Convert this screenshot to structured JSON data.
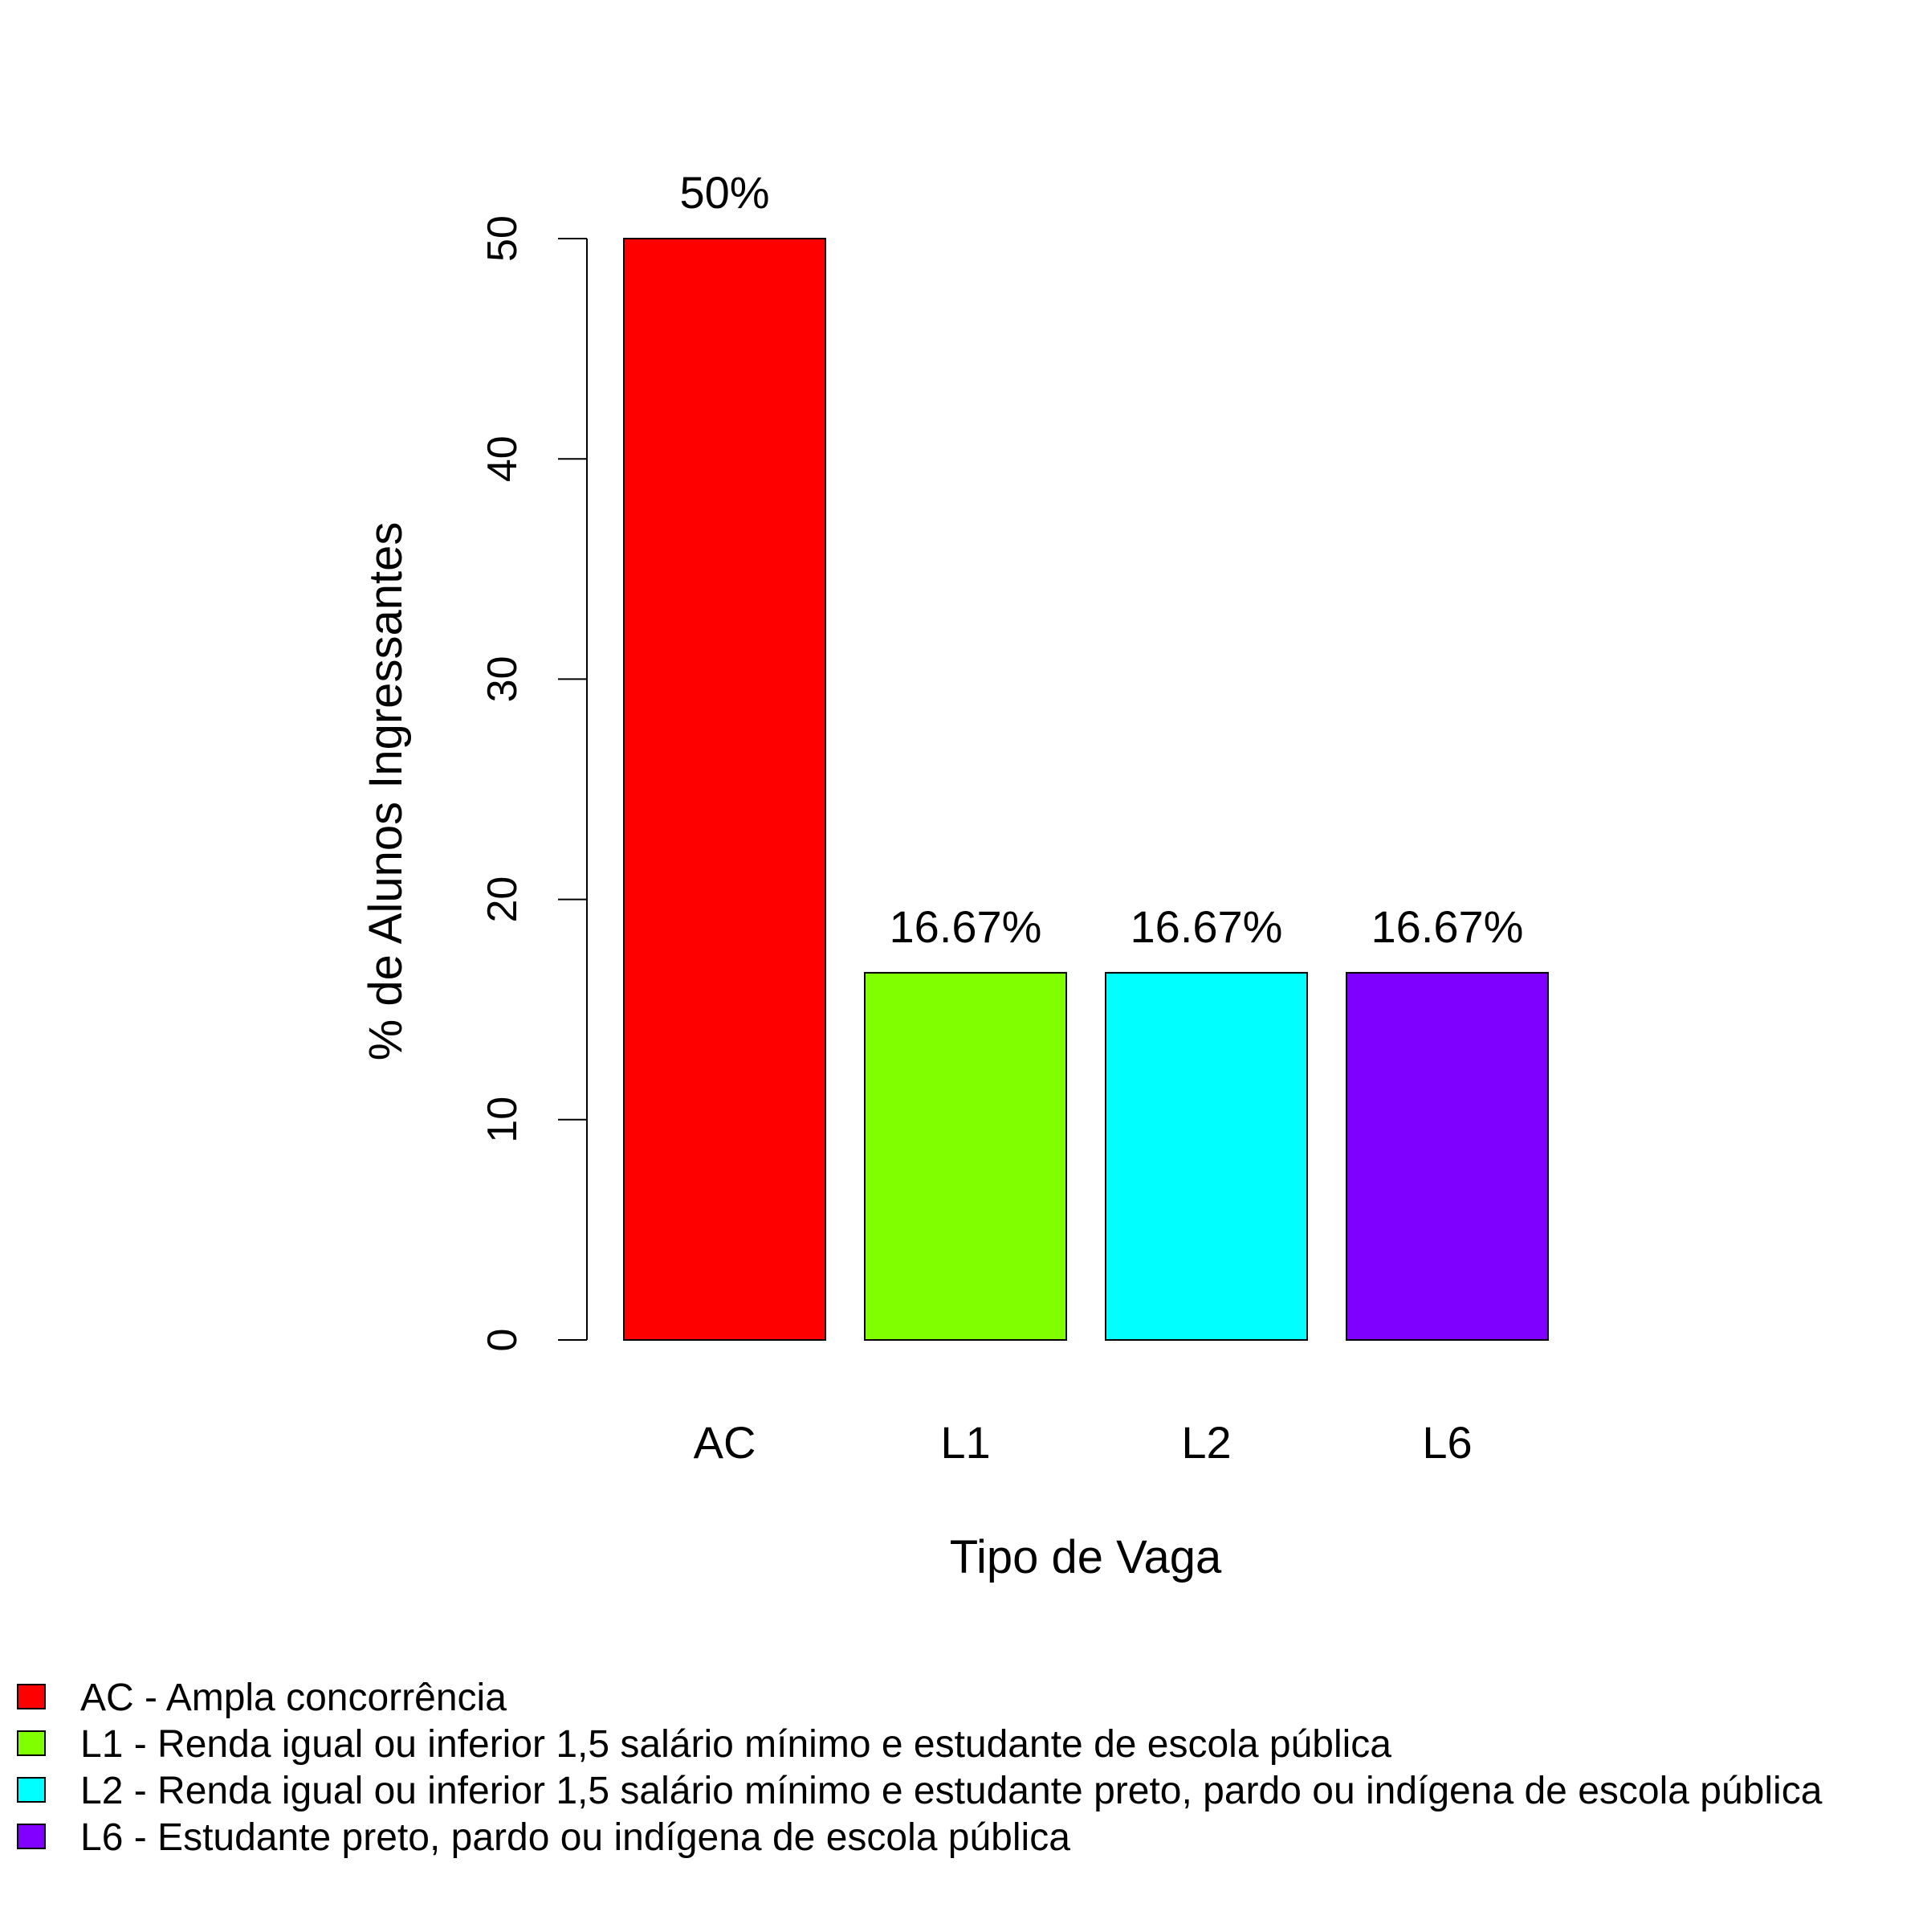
{
  "chart_data": {
    "type": "bar",
    "xlabel": "Tipo de Vaga",
    "ylabel": "% de Alunos Ingressantes",
    "ylim": [
      0,
      50
    ],
    "yticks": [
      0,
      10,
      20,
      30,
      40,
      50
    ],
    "categories": [
      "AC",
      "L1",
      "L2",
      "L6"
    ],
    "values": [
      50,
      16.67,
      16.67,
      16.67
    ],
    "data_labels": [
      "50%",
      "16.67%",
      "16.67%",
      "16.67%"
    ],
    "colors": [
      "#FF0000",
      "#80FF00",
      "#00FFFF",
      "#8000FF"
    ],
    "grid": false,
    "legend": {
      "position": "bottom-left",
      "entries": [
        {
          "label": "AC - Ampla concorrência",
          "color": "#FF0000"
        },
        {
          "label": "L1 - Renda igual ou inferior 1,5 salário mínimo e estudante de escola pública",
          "color": "#80FF00"
        },
        {
          "label": "L2 - Renda igual ou inferior 1,5 salário mínimo e estudante preto, pardo ou indígena de escola pública",
          "color": "#00FFFF"
        },
        {
          "label": "L6 - Estudante preto, pardo ou indígena de escola pública",
          "color": "#8000FF"
        }
      ]
    }
  }
}
